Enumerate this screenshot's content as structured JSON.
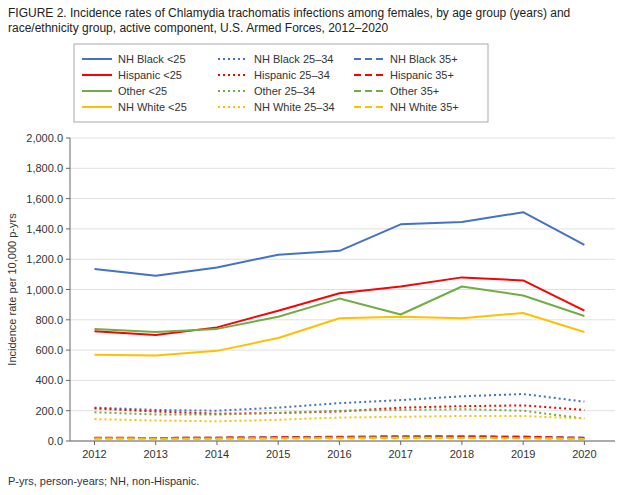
{
  "chart_data": {
    "type": "line",
    "title": "FIGURE 2. Incidence rates of Chlamydia trachomatis infections among females, by age group (years) and race/ethnicity group, active component, U.S. Armed Forces, 2012–2020",
    "ylabel": "Incidence rate per 10,000 p-yrs",
    "annotations": [
      "P-yrs, person-years; NH, non-Hispanic."
    ],
    "x": [
      2012,
      2013,
      2014,
      2015,
      2016,
      2017,
      2018,
      2019,
      2020
    ],
    "xlim": [
      2011.6,
      2020.5
    ],
    "xticks": [
      2012,
      2013,
      2014,
      2015,
      2016,
      2017,
      2018,
      2019,
      2020
    ],
    "ylim": [
      0,
      2000
    ],
    "yticks": [
      {
        "value": 0,
        "label": "0.0"
      },
      {
        "value": 200,
        "label": "200.0"
      },
      {
        "value": 400,
        "label": "400.0"
      },
      {
        "value": 600,
        "label": "600.0"
      },
      {
        "value": 800,
        "label": "800.0"
      },
      {
        "value": 1000,
        "label": "1,000.0"
      },
      {
        "value": 1200,
        "label": "1,200.0"
      },
      {
        "value": 1400,
        "label": "1,400.0"
      },
      {
        "value": 1600,
        "label": "1,600.0"
      },
      {
        "value": 1800,
        "label": "1,800.0"
      },
      {
        "value": 2000,
        "label": "2,000.0"
      }
    ],
    "grid": true,
    "legend": "top",
    "series": [
      {
        "name": "NH Black <25",
        "color": "#4472C4",
        "line_style": "solid",
        "values": [
          1135,
          1090,
          1145,
          1230,
          1255,
          1430,
          1445,
          1510,
          1295
        ]
      },
      {
        "name": "NH Black 25–34",
        "color": "#4472C4",
        "line_style": "dotted",
        "values": [
          220,
          205,
          200,
          220,
          250,
          270,
          295,
          310,
          260
        ]
      },
      {
        "name": "NH Black 35+",
        "color": "#4472C4",
        "line_style": "dashed",
        "values": [
          20,
          20,
          22,
          25,
          28,
          32,
          30,
          28,
          22
        ]
      },
      {
        "name": "Hispanic <25",
        "color": "#FF0000",
        "line_style": "solid",
        "values": [
          725,
          700,
          750,
          860,
          975,
          1020,
          1080,
          1060,
          860
        ]
      },
      {
        "name": "Hispanic 25–34",
        "color": "#FF0000",
        "line_style": "dotted",
        "values": [
          215,
          195,
          180,
          185,
          195,
          220,
          230,
          235,
          205
        ]
      },
      {
        "name": "Hispanic 35+",
        "color": "#FF0000",
        "line_style": "dashed",
        "values": [
          22,
          20,
          22,
          24,
          26,
          28,
          30,
          28,
          20
        ]
      },
      {
        "name": "Other <25",
        "color": "#70AD47",
        "line_style": "solid",
        "values": [
          740,
          720,
          740,
          820,
          940,
          835,
          1020,
          960,
          825
        ]
      },
      {
        "name": "Other 25–34",
        "color": "#70AD47",
        "line_style": "dotted",
        "values": [
          190,
          175,
          175,
          185,
          200,
          205,
          210,
          200,
          148
        ]
      },
      {
        "name": "Other 35+",
        "color": "#70AD47",
        "line_style": "dashed",
        "values": [
          18,
          18,
          18,
          20,
          22,
          24,
          22,
          20,
          15
        ]
      },
      {
        "name": "NH White <25",
        "color": "#FFC000",
        "line_style": "solid",
        "values": [
          570,
          565,
          595,
          680,
          810,
          820,
          810,
          845,
          720
        ]
      },
      {
        "name": "NH White 25–34",
        "color": "#FFC000",
        "line_style": "dotted",
        "values": [
          145,
          135,
          130,
          140,
          155,
          160,
          165,
          165,
          148
        ]
      },
      {
        "name": "NH White 35+",
        "color": "#FFC000",
        "line_style": "dashed",
        "values": [
          15,
          14,
          14,
          16,
          18,
          20,
          20,
          18,
          14
        ]
      }
    ]
  }
}
